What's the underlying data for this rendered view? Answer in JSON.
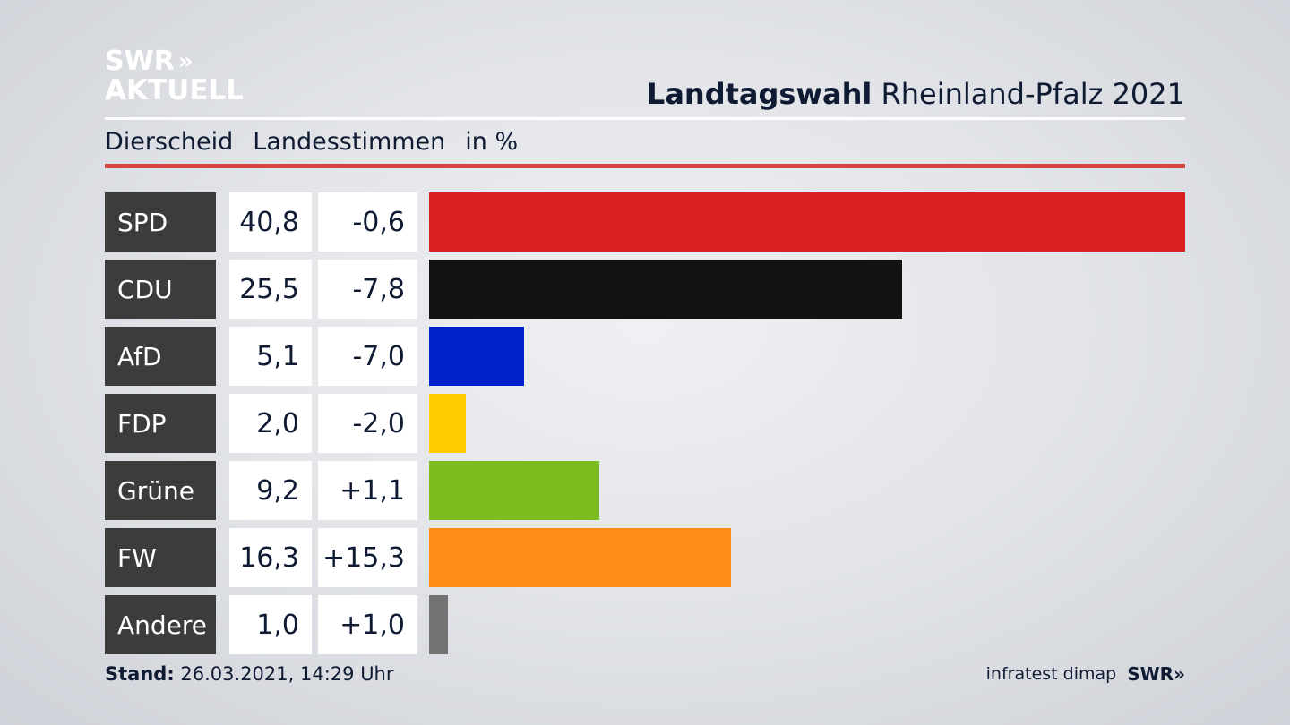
{
  "brand": {
    "logo_line1": "SWR",
    "logo_chevrons": "»",
    "logo_line2": "AKTUELL",
    "footer_logo": "SWR»"
  },
  "header": {
    "title_bold": "Landtagswahl",
    "title_rest": "Rheinland-Pfalz 2021",
    "subtitle_place": "Dierscheid",
    "subtitle_metric": "Landesstimmen",
    "subtitle_unit": "in %"
  },
  "colors": {
    "accent_rule": "#d0493f",
    "party_cell": "#3c3c3c"
  },
  "chart_data": {
    "type": "bar",
    "orientation": "horizontal",
    "categories": [
      "SPD",
      "CDU",
      "AfD",
      "FDP",
      "Grüne",
      "FW",
      "Andere"
    ],
    "values": [
      40.8,
      25.5,
      5.1,
      2.0,
      9.2,
      16.3,
      1.0
    ],
    "value_labels": [
      "40,8",
      "25,5",
      "5,1",
      "2,0",
      "9,2",
      "16,3",
      "1,0"
    ],
    "diff_labels": [
      "-0,6",
      "-7,8",
      "-7,0",
      "-2,0",
      "+1,1",
      "+15,3",
      "+1,0"
    ],
    "diffs": [
      -0.6,
      -7.8,
      -7.0,
      -2.0,
      1.1,
      15.3,
      1.0
    ],
    "colors": [
      "#d82020",
      "#121212",
      "#0022cc",
      "#ffcc00",
      "#7abd1d",
      "#ff8c14",
      "#737373"
    ],
    "title": "Landtagswahl Rheinland-Pfalz 2021",
    "xlim": [
      0,
      40.8
    ],
    "grid": false
  },
  "footer": {
    "stand_label": "Stand:",
    "stand_value": "26.03.2021, 14:29 Uhr",
    "source": "infratest dimap"
  }
}
